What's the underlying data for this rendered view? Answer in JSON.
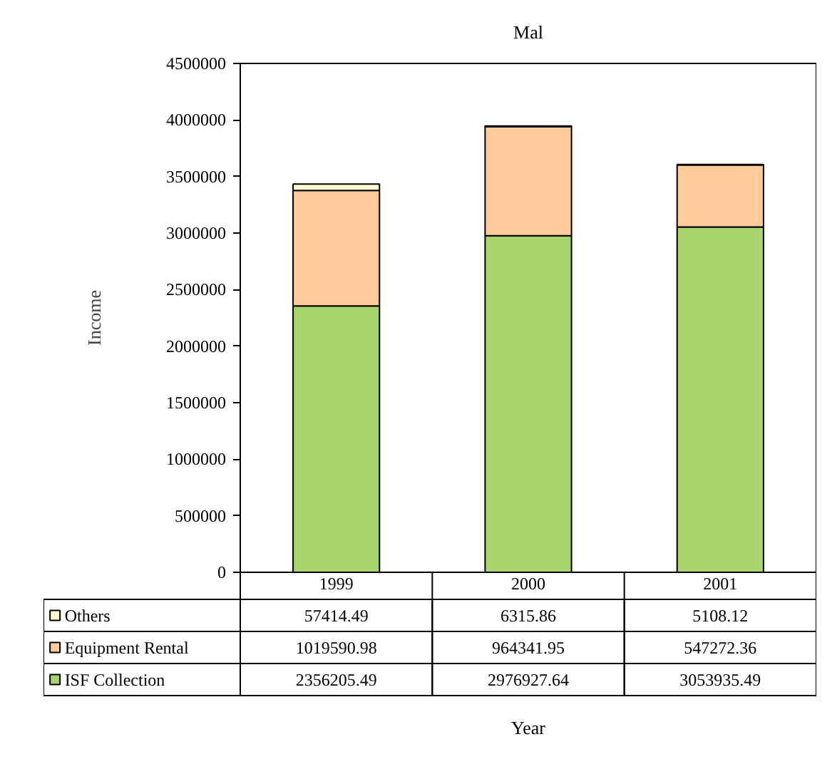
{
  "chart_data": {
    "type": "bar",
    "title": "Mal",
    "annotations": [
      "Year"
    ],
    "ylabel": "Income",
    "stacked": true,
    "categories": [
      "1999",
      "2000",
      "2001"
    ],
    "series": [
      {
        "name": "ISF Collection",
        "color": "#a8d46e",
        "values": [
          2356205.49,
          2976927.64,
          3053935.49
        ]
      },
      {
        "name": "Equipment Rental",
        "color": "#ffcc99",
        "values": [
          1019590.98,
          964341.95,
          547272.36
        ]
      },
      {
        "name": "Others",
        "color": "#ffffcc",
        "values": [
          57414.49,
          6315.86,
          5108.12
        ]
      }
    ],
    "ylim": [
      0,
      4500000
    ],
    "yticks": [
      0,
      500000,
      1000000,
      1500000,
      2000000,
      2500000,
      3000000,
      3500000,
      4000000,
      4500000
    ],
    "grid": false,
    "legend": "bottom",
    "data_labels": true
  }
}
